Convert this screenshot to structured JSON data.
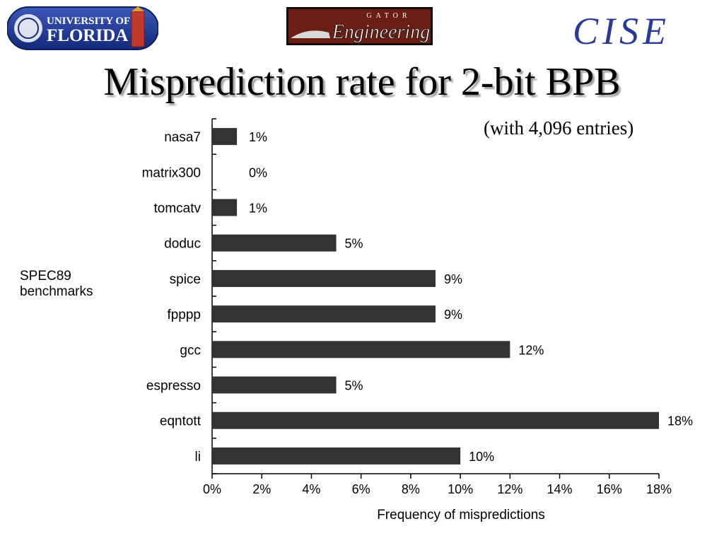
{
  "logos": {
    "uf": {
      "line1": "UNIVERSITY OF",
      "line2": "FLORIDA"
    },
    "gator": {
      "small": "GATOR",
      "big": "Engineering"
    },
    "cise": "CISE"
  },
  "chart_data": {
    "type": "bar",
    "orientation": "horizontal",
    "title": "Misprediction rate for 2-bit BPB",
    "subtitle": "(with 4,096 entries)",
    "ylabel": "SPEC89\nbenchmarks",
    "xlabel": "Frequency of mispredictions",
    "categories": [
      "nasa7",
      "matrix300",
      "tomcatv",
      "doduc",
      "spice",
      "fpppp",
      "gcc",
      "espresso",
      "eqntott",
      "li"
    ],
    "values": [
      1,
      0,
      1,
      5,
      9,
      9,
      12,
      5,
      18,
      10
    ],
    "value_labels": [
      "1%",
      "0%",
      "1%",
      "5%",
      "9%",
      "9%",
      "12%",
      "5%",
      "18%",
      "10%"
    ],
    "xticks": [
      "0%",
      "2%",
      "4%",
      "6%",
      "8%",
      "10%",
      "12%",
      "14%",
      "16%",
      "18%"
    ],
    "xlim": [
      0,
      18
    ],
    "bar_color": "#333333",
    "grid": false
  }
}
